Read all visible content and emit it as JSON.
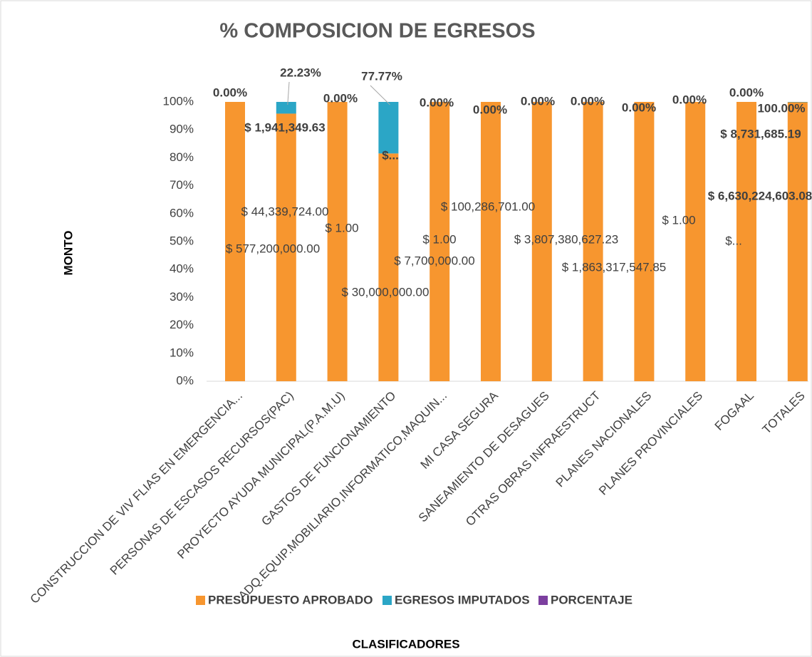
{
  "chart_data": {
    "type": "bar",
    "stacking": "percent",
    "title": "% COMPOSICION DE EGRESOS",
    "y_label": "MONTO",
    "x_label": "CLASIFICADORES",
    "categories": [
      "CONSTRUCCION DE VIV FLIAS EN EMERGENCIA...",
      "PERSONAS DE ESCASOS RECURSOS(PAC)",
      "PROYECTO AYUDA MUNICIPAL(P.A.M.U)",
      "GASTOS DE FUNCIONAMIENTO",
      "ADQ.EQUIP.MOBILIARIO,INFORMATICO,MAQUIN...",
      "MI CASA SEGURA",
      "SANEAMIENTO DE DESAGUES",
      "OTRAS OBRAS INFRAESTRUCT",
      "PLANES NACIONALES",
      "PLANES PROVINCIALES",
      "FOGAAL",
      "TOTALES"
    ],
    "series": [
      {
        "name": "PRESUPUESTO APROBADO",
        "color": "#f7962f",
        "values": [
          577200000,
          44339724,
          1,
          30000000,
          7700000,
          1,
          100286701,
          3807380627.23,
          1863317547.85,
          1,
          200000000,
          6630224603.08
        ],
        "value_labels": [
          "$ 577,200,000.00",
          "$ 44,339,724.00",
          "$ 1.00",
          "$ 30,000,000.00",
          "$ 7,700,000.00",
          "$ 1.00",
          "$ 100,286,701.00",
          "$ 3,807,380,627.23",
          "$ 1,863,317,547.85",
          "$ 1.00",
          "$...",
          "$ 6,630,224,603.08"
        ]
      },
      {
        "name": "EGRESOS IMPUTADOS",
        "color": "#2ba6c6",
        "values": [
          0,
          1941349.63,
          0,
          6790335.56,
          0,
          0,
          0,
          0,
          0,
          0,
          0,
          8731685.19
        ],
        "value_labels": [
          null,
          "$ 1,941,349.63",
          null,
          "$...",
          null,
          null,
          null,
          null,
          null,
          null,
          null,
          "$ 8,731,685.19"
        ]
      },
      {
        "name": "PORCENTAJE",
        "color": "#7c3f9f",
        "values": [
          0,
          22.23,
          0,
          77.77,
          0,
          0,
          0,
          0,
          0,
          0,
          0,
          100
        ],
        "value_labels": [
          "0.00%",
          "22.23%",
          "0.00%",
          "77.77%",
          "0.00%",
          "0.00%",
          "0.00%",
          "0.00%",
          "0.00%",
          "0.00%",
          "0.00%",
          "100.00%"
        ]
      }
    ],
    "ylim": [
      0,
      100
    ],
    "yticks": [
      {
        "value": 0,
        "label": "0%"
      },
      {
        "value": 10,
        "label": "10%"
      },
      {
        "value": 20,
        "label": "20%"
      },
      {
        "value": 30,
        "label": "30%"
      },
      {
        "value": 40,
        "label": "40%"
      },
      {
        "value": 50,
        "label": "50%"
      },
      {
        "value": 60,
        "label": "60%"
      },
      {
        "value": 70,
        "label": "70%"
      },
      {
        "value": 80,
        "label": "80%"
      },
      {
        "value": 90,
        "label": "90%"
      },
      {
        "value": 100,
        "label": "100%"
      }
    ],
    "grid": false,
    "legend": "bottom"
  }
}
